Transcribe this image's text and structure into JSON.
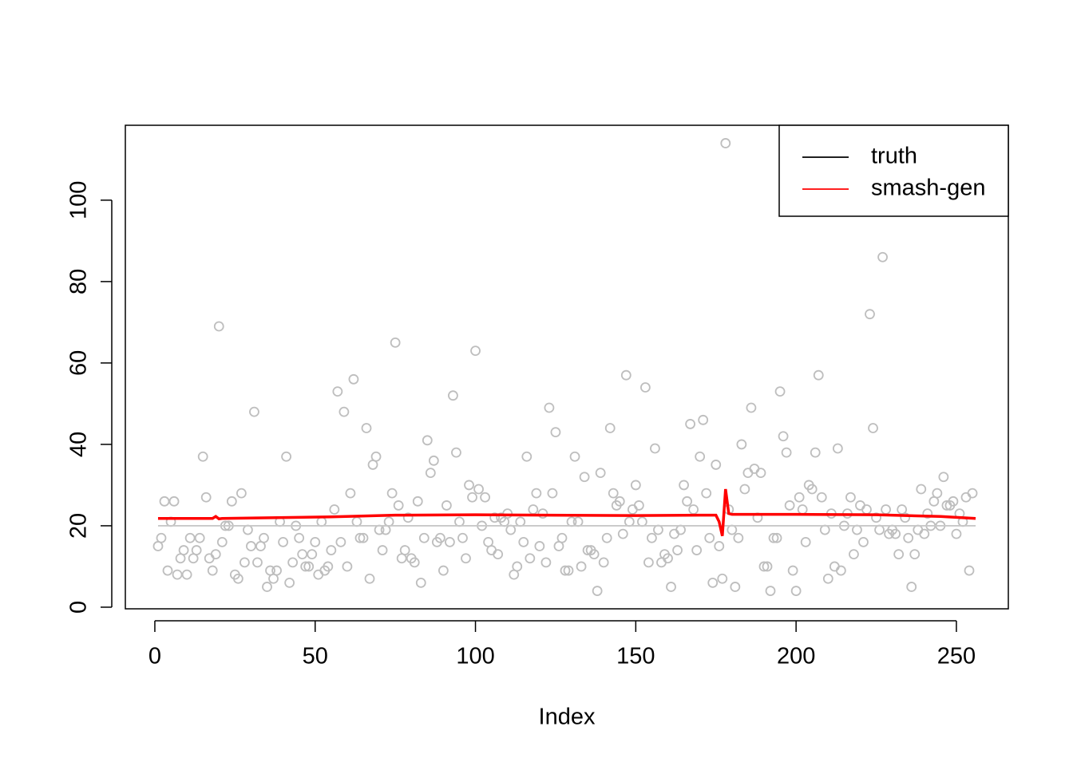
{
  "chart_data": {
    "type": "scatter",
    "xlabel": "Index",
    "xlim": [
      -9.2,
      266.2
    ],
    "xticks": [
      0,
      50,
      100,
      150,
      200,
      250
    ],
    "ylim": [
      -0.4,
      118.4
    ],
    "yticks": [
      0,
      20,
      40,
      60,
      80,
      100
    ],
    "point_color": "#bebebe",
    "values": [
      15,
      17,
      26,
      9,
      21,
      26,
      8,
      12,
      14,
      8,
      17,
      12,
      14,
      17,
      37,
      27,
      12,
      9,
      13,
      69,
      16,
      20,
      20,
      26,
      8,
      7,
      28,
      11,
      19,
      15,
      48,
      11,
      15,
      17,
      5,
      9,
      7,
      9,
      21,
      16,
      37,
      6,
      11,
      20,
      17,
      13,
      10,
      10,
      13,
      16,
      8,
      21,
      9,
      10,
      14,
      24,
      53,
      16,
      48,
      10,
      28,
      56,
      21,
      17,
      17,
      44,
      7,
      35,
      37,
      19,
      14,
      19,
      21,
      28,
      65,
      25,
      12,
      14,
      22,
      12,
      11,
      26,
      6,
      17,
      41,
      33,
      36,
      16,
      17,
      9,
      25,
      16,
      52,
      38,
      21,
      17,
      12,
      30,
      27,
      63,
      29,
      20,
      27,
      16,
      14,
      22,
      13,
      22,
      21,
      23,
      19,
      8,
      10,
      21,
      16,
      37,
      12,
      24,
      28,
      15,
      23,
      11,
      49,
      28,
      43,
      15,
      17,
      9,
      9,
      21,
      37,
      21,
      10,
      32,
      14,
      14,
      13,
      4,
      33,
      11,
      17,
      44,
      28,
      25,
      26,
      18,
      57,
      21,
      24,
      30,
      25,
      21,
      54,
      11,
      17,
      39,
      19,
      11,
      13,
      12,
      5,
      18,
      14,
      19,
      30,
      26,
      45,
      24,
      14,
      37,
      46,
      28,
      17,
      6,
      35,
      15,
      7,
      114,
      24,
      19,
      5,
      17,
      40,
      29,
      33,
      49,
      34,
      22,
      33,
      10,
      10,
      4,
      17,
      17,
      53,
      42,
      38,
      25,
      9,
      4,
      27,
      24,
      16,
      30,
      29,
      38,
      57,
      27,
      19,
      7,
      23,
      10,
      39,
      9,
      20,
      23,
      27,
      13,
      19,
      25,
      16,
      24,
      72,
      44,
      22,
      19,
      86,
      24,
      18,
      19,
      18,
      13,
      24,
      22,
      17,
      5,
      13,
      19,
      29,
      18,
      23,
      20,
      26,
      28,
      20,
      32,
      25,
      25,
      26,
      18,
      23,
      21,
      27,
      9,
      28
    ],
    "series": [
      {
        "name": "truth",
        "color": "#000000",
        "line_color": "#c8c8c8",
        "x": [
          1,
          256
        ],
        "values": [
          20,
          20
        ]
      },
      {
        "name": "smash-gen",
        "color": "#ff0000",
        "x": [
          1,
          18,
          19,
          20,
          21,
          55,
          75,
          100,
          150,
          170,
          175,
          176,
          177,
          178,
          179,
          180,
          200,
          225,
          245,
          256
        ],
        "values": [
          21.8,
          21.8,
          22.3,
          21.7,
          21.8,
          22.2,
          22.6,
          22.7,
          22.5,
          22.6,
          22.6,
          21,
          17.5,
          29,
          23,
          22.8,
          22.8,
          22.7,
          22.3,
          21.8
        ]
      }
    ]
  }
}
